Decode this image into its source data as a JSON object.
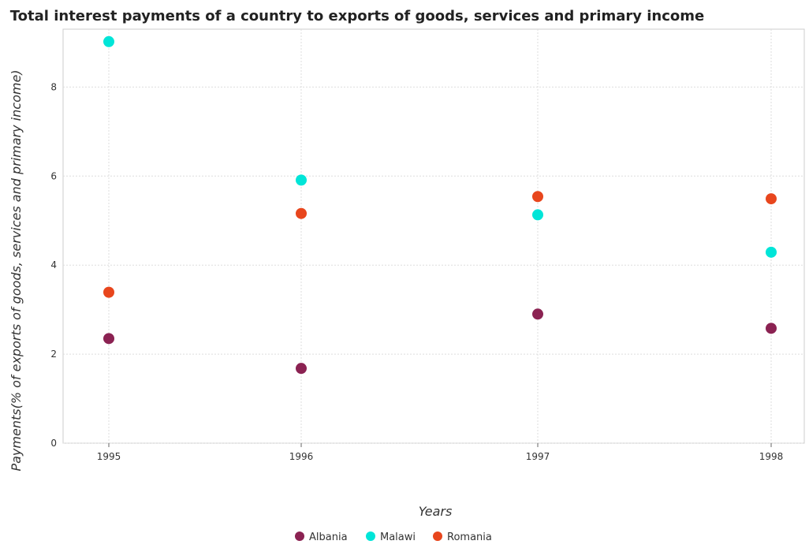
{
  "chart_data": {
    "type": "scatter",
    "title": "Total interest payments of a country to exports of goods, services and primary income",
    "xlabel": "Years",
    "ylabel": "Payments(% of exports of goods, services and primary income)",
    "categories": [
      "1995",
      "1996",
      "1997",
      "1998"
    ],
    "ylim": [
      0,
      9.3
    ],
    "yticks": [
      "0",
      "2",
      "4",
      "6",
      "8"
    ],
    "grid": true,
    "legend_position": "bottom-center",
    "series": [
      {
        "name": "Albania",
        "color": "#8b2252",
        "values": [
          2.35,
          1.68,
          2.9,
          2.58
        ]
      },
      {
        "name": "Malawi",
        "color": "#00e5d8",
        "values": [
          9.02,
          5.91,
          5.13,
          4.29
        ]
      },
      {
        "name": "Romania",
        "color": "#e8461d",
        "values": [
          3.39,
          5.16,
          5.54,
          5.49
        ]
      }
    ]
  }
}
